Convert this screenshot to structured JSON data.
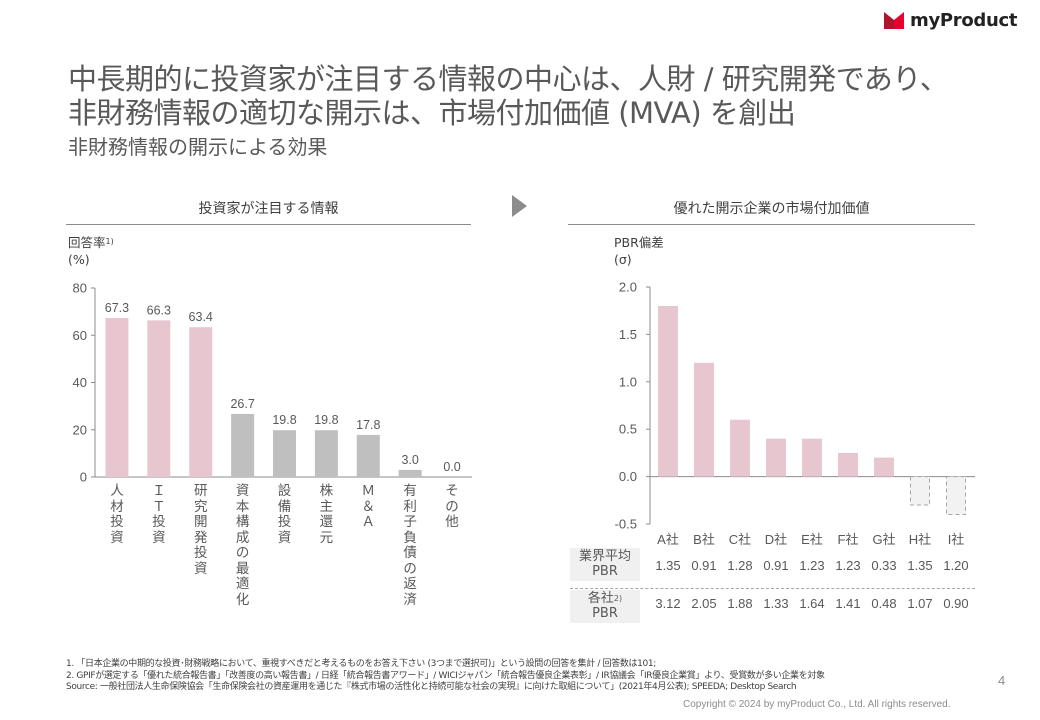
{
  "brand": {
    "name": "myProduct",
    "logo_colors": [
      "#b0142a",
      "#e6002d"
    ]
  },
  "header": {
    "title_lines": [
      "中長期的に投資家が注目する情報の中心は、人財 / 研究開発であり、",
      "非財務情報の適切な開示は、市場付加価値 (MVA) を創出"
    ],
    "subtitle": "非財務情報の開示による効果"
  },
  "colors": {
    "highlight": "#e8c6d0",
    "neutral": "#bfbfbf",
    "negative_fill": "#f2f2f2",
    "negative_border": "#a6a6a6",
    "axis": "#8c8c8c",
    "text": "#595959"
  },
  "chart_data": [
    {
      "type": "bar",
      "title": "投資家が注目する情報",
      "ylabel": "回答率",
      "ylabel_note": "1)",
      "yunit": "(%)",
      "xlabel": "",
      "ylim": [
        0,
        80
      ],
      "yticks": [
        0,
        20,
        40,
        60,
        80
      ],
      "grid": false,
      "categories": [
        "人材投資",
        "IT投資",
        "研究開発投資",
        "資本構成の最適化",
        "設備投資",
        "株主還元",
        "M&A",
        "有利子負債の返済",
        "その他"
      ],
      "category_display": [
        "人材投資",
        "ＩＴ投資",
        "研究開発投資",
        "資本構成の最適化",
        "設備投資",
        "株主還元",
        "Ｍ＆Ａ",
        "有利子負債の返済",
        "その他"
      ],
      "values": [
        67.3,
        66.3,
        63.4,
        26.7,
        19.8,
        19.8,
        17.8,
        3.0,
        0.0
      ],
      "value_labels": [
        "67.3",
        "66.3",
        "63.4",
        "26.7",
        "19.8",
        "19.8",
        "17.8",
        "3.0",
        "0.0"
      ],
      "highlighted": [
        true,
        true,
        true,
        false,
        false,
        false,
        false,
        false,
        false
      ]
    },
    {
      "type": "bar",
      "title": "優れた開示企業の市場付加価値",
      "ylabel": "PBR偏差",
      "yunit": "(σ)",
      "xlabel": "",
      "ylim": [
        -0.5,
        2.0
      ],
      "yticks": [
        -0.5,
        0.0,
        0.5,
        1.0,
        1.5,
        2.0
      ],
      "ytick_labels": [
        "-0.5",
        "0.0",
        "0.5",
        "1.0",
        "1.5",
        "2.0"
      ],
      "grid": false,
      "categories": [
        "A社",
        "B社",
        "C社",
        "D社",
        "E社",
        "F社",
        "G社",
        "H社",
        "I社"
      ],
      "values": [
        1.8,
        1.2,
        0.6,
        0.4,
        0.4,
        0.25,
        0.2,
        -0.3,
        -0.4
      ],
      "table": {
        "rows": [
          {
            "label_main": "業界平均",
            "label_note": "",
            "label_sub": "PBR",
            "values": [
              "1.35",
              "0.91",
              "1.28",
              "0.91",
              "1.23",
              "1.23",
              "0.33",
              "1.35",
              "1.20"
            ]
          },
          {
            "label_main": "各社",
            "label_note": "2)",
            "label_sub": "PBR",
            "values": [
              "3.12",
              "2.05",
              "1.88",
              "1.33",
              "1.64",
              "1.41",
              "0.48",
              "1.07",
              "0.90"
            ]
          }
        ]
      }
    }
  ],
  "footnotes": [
    "1. 「日本企業の中期的な投資･財務戦略において、重視すべきだと考えるものをお答え下さい (3つまで選択可)」という設問の回答を集計 / 回答数は101;",
    "2. GPIFが選定する「優れた統合報告書」「改善度の高い報告書」/ 日経「統合報告書アワード」/ WICIジャパン「統合報告優良企業表彰」/ IR協議会「IR優良企業賞」より、受賞数が多い企業を対象",
    "Source: 一般社団法人生命保険協会「生命保険会社の資産運用を通じた『株式市場の活性化と持続可能な社会の実現』に向けた取組について」(2021年4月公表); SPEEDA;  Desktop Search"
  ],
  "page_number": "4",
  "copyright": "Copyright © 2024 by myProduct Co., Ltd.   All rights reserved."
}
